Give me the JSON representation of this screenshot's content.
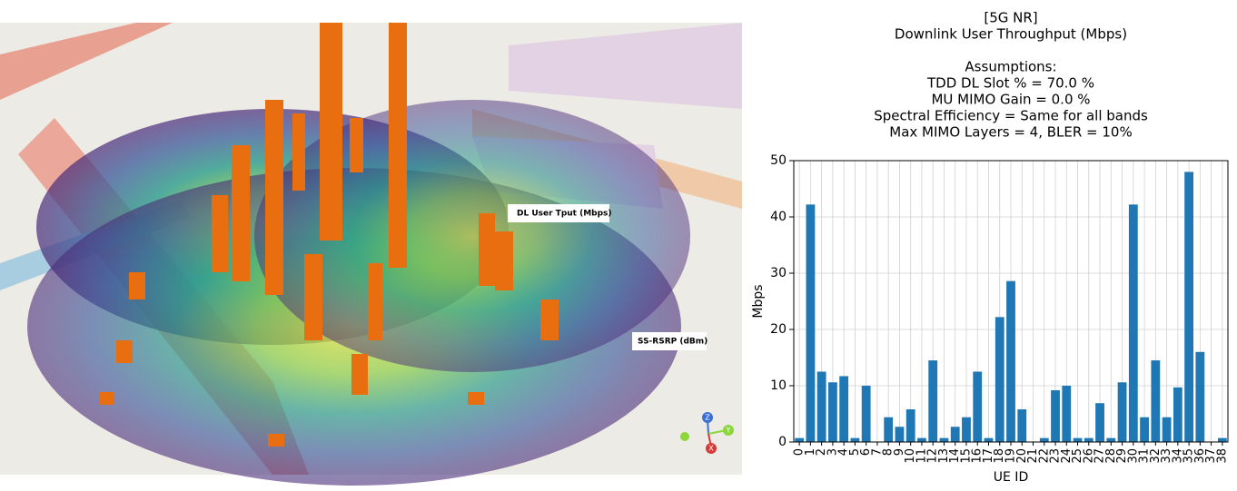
{
  "map": {
    "labels": [
      "DL User Tput (Mbps)",
      "SS-RSRP (dBm)"
    ],
    "gizmo": [
      "Z",
      "Y",
      "X"
    ]
  },
  "chart_data": {
    "type": "bar",
    "title": [
      "[5G NR]",
      "Downlink User Throughput (Mbps)"
    ],
    "subtitle": [
      "Assumptions:",
      "TDD DL Slot % = 70.0 %",
      "MU MIMO Gain = 0.0 %",
      "Spectral Efficiency = Same for all bands",
      "Max MIMO Layers = 4, BLER = 10%"
    ],
    "xlabel": "UE ID",
    "ylabel": "Mbps",
    "categories": [
      "0",
      "1",
      "2",
      "3",
      "4",
      "5",
      "6",
      "7",
      "8",
      "9",
      "10",
      "11",
      "12",
      "13",
      "14",
      "15",
      "16",
      "17",
      "18",
      "19",
      "20",
      "21",
      "22",
      "23",
      "24",
      "25",
      "26",
      "27",
      "28",
      "29",
      "30",
      "31",
      "32",
      "33",
      "34",
      "35",
      "36",
      "37",
      "38"
    ],
    "values": [
      0.7,
      42.2,
      12.5,
      10.6,
      11.7,
      0.7,
      10.0,
      0,
      4.4,
      2.7,
      5.8,
      0.7,
      14.5,
      0.7,
      2.7,
      4.4,
      12.5,
      0.7,
      22.2,
      28.6,
      5.8,
      0,
      0.7,
      9.2,
      10.0,
      0.7,
      0.7,
      6.9,
      0.7,
      10.6,
      42.2,
      4.4,
      14.5,
      4.4,
      9.7,
      48.0,
      16.0,
      0,
      0.7
    ],
    "color": "#1f77b4",
    "ylim": [
      0,
      50
    ],
    "yticks": [
      0,
      10,
      20,
      30,
      40,
      50
    ],
    "grid": true
  }
}
